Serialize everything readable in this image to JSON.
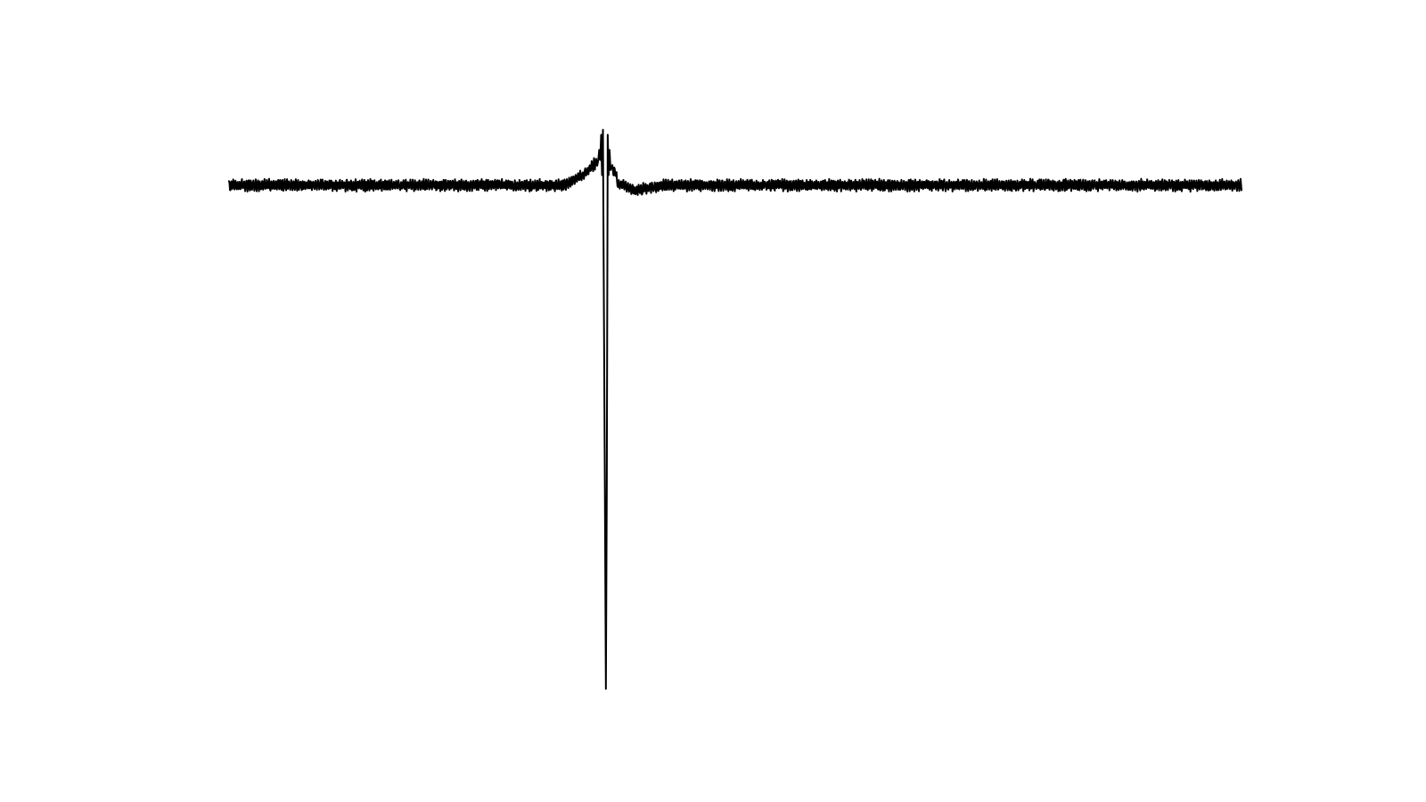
{
  "chart_data": {
    "type": "line",
    "title": "",
    "xlabel": "",
    "ylabel": "",
    "grid": false,
    "axes_visible": false,
    "line_color": "#000000",
    "xlim": [
      0,
      1
    ],
    "ylim": [
      -1.0,
      0.12
    ],
    "series": [
      {
        "name": "",
        "x": [
          0,
          0.33,
          0.35,
          0.3647,
          0.3656,
          0.3666,
          0.3675,
          0.3684,
          0.3693,
          0.3712,
          0.3722,
          0.3731,
          0.374,
          0.3749,
          0.3758,
          0.3768,
          0.3786,
          0.3796,
          0.3813,
          0.384,
          0.39,
          0.4,
          0.43,
          1
        ],
        "y": [
          0,
          0.0,
          0.02,
          0.05,
          0.07,
          0.05,
          0.1,
          0.02,
          0.11,
          -0.6,
          -1.0,
          -0.6,
          0.1,
          0.02,
          0.07,
          0.03,
          0.04,
          0.02,
          0.03,
          0.0,
          0.0,
          -0.01,
          0.0,
          0.0
        ]
      }
    ]
  }
}
